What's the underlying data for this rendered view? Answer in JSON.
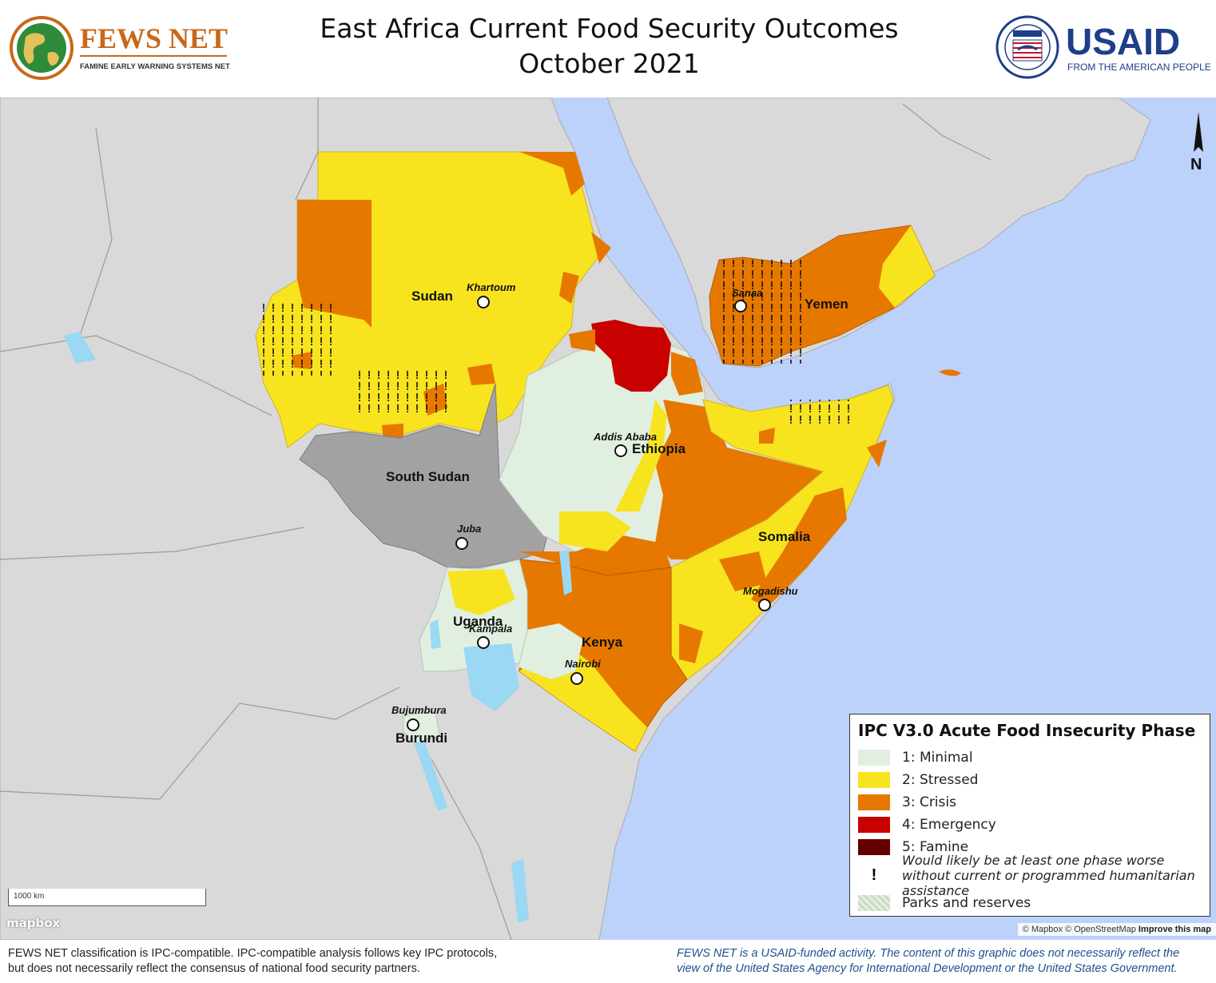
{
  "header": {
    "title_line1": "East Africa Current Food Security Outcomes",
    "title_line2": "October 2021",
    "fews_logo_text": "FEWS NET",
    "fews_logo_subtext": "FAMINE EARLY WARNING SYSTEMS NETWORK",
    "usaid_logo_text": "USAID",
    "usaid_logo_subtext": "FROM THE AMERICAN PEOPLE"
  },
  "map": {
    "countries": {
      "sudan": "Sudan",
      "south_sudan": "South Sudan",
      "ethiopia": "Ethiopia",
      "yemen": "Yemen",
      "somalia": "Somalia",
      "kenya": "Kenya",
      "uganda": "Uganda",
      "burundi": "Burundi"
    },
    "cities": {
      "khartoum": "Khartoum",
      "addis_ababa": "Addis Ababa",
      "sanaa": "Sanaa",
      "juba": "Juba",
      "mogadishu": "Mogadishu",
      "kampala": "Kampala",
      "nairobi": "Nairobi",
      "bujumbura": "Bujumbura"
    },
    "north_arrow": "N",
    "scale_label": "1000 km",
    "mapbox_logo": "mapbox",
    "attribution": "© Mapbox © OpenStreetMap",
    "attribution_link": "Improve this map"
  },
  "legend": {
    "title": "IPC V3.0 Acute Food Insecurity Phase",
    "items": [
      {
        "label": "1: Minimal",
        "color": "#e0efdf"
      },
      {
        "label": "2: Stressed",
        "color": "#f8e31f"
      },
      {
        "label": "3: Crisis",
        "color": "#e67800"
      },
      {
        "label": "4: Emergency",
        "color": "#c80000"
      },
      {
        "label": "5: Famine",
        "color": "#640000"
      }
    ],
    "assistance_note": "Would likely be at least one phase worse without current or programmed humanitarian assistance",
    "parks_label": "Parks and reserves"
  },
  "colors": {
    "ocean": "#bcd2fb",
    "land": "#d9d9d9",
    "south_sudan_no_data": "#a2a2a2",
    "lakes": "#9ad8f4"
  },
  "footer": {
    "left_line1": "FEWS NET classification is IPC-compatible. IPC-compatible analysis follows key IPC protocols,",
    "left_line2": "but does not necessarily reflect the consensus of national food security partners.",
    "right_line1": "FEWS NET is a USAID-funded activity. The content of this graphic does not necessarily reflect the",
    "right_line2": "view of the United States Agency for International Development or the United States Government."
  }
}
